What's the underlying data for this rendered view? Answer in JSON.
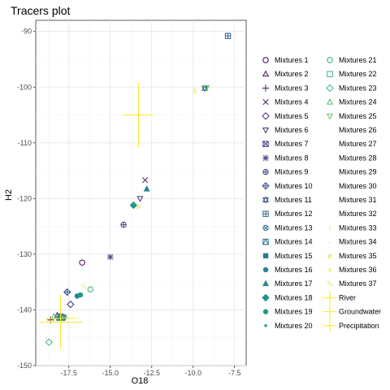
{
  "chart_data": {
    "type": "scatter",
    "title": "Tracers plot",
    "xlabel": "O18",
    "ylabel": "H2",
    "xlim": [
      -19.5,
      -6.8
    ],
    "ylim": [
      -150,
      -88
    ],
    "x_ticks": [
      -17.5,
      -15.0,
      -12.5,
      -10.0,
      -7.5
    ],
    "y_ticks": [
      -90,
      -100,
      -110,
      -120,
      -130,
      -140,
      -150
    ],
    "x_tick_labels": [
      "-17.5",
      "-15.0",
      "-12.5",
      "-10.0",
      "-7.5"
    ],
    "y_tick_labels": [
      "-90",
      "-100",
      "-110",
      "-120",
      "-130",
      "-140",
      "-150"
    ],
    "grid": true,
    "legend_position": "right",
    "series": [
      {
        "name": "Mixtures 1",
        "shape": "circle",
        "color": "#440154",
        "points": [
          [
            -16.7,
            -131.5
          ]
        ]
      },
      {
        "name": "Mixtures 2",
        "shape": "triangle",
        "color": "#46085c",
        "points": [
          [
            -18.2,
            -141.0
          ]
        ]
      },
      {
        "name": "Mixtures 3",
        "shape": "plus",
        "color": "#471063",
        "points": [
          [
            -18.6,
            -141.8
          ]
        ]
      },
      {
        "name": "Mixtures 4",
        "shape": "cross",
        "color": "#481a6c",
        "points": [
          [
            -12.9,
            -116.7
          ]
        ]
      },
      {
        "name": "Mixtures 5",
        "shape": "diamond",
        "color": "#482374",
        "points": [
          [
            -17.4,
            -139.0
          ]
        ]
      },
      {
        "name": "Mixtures 6",
        "shape": "triangle-down",
        "color": "#472d7b",
        "points": [
          [
            -13.2,
            -120.0
          ]
        ]
      },
      {
        "name": "Mixtures 7",
        "shape": "square-x",
        "color": "#453581",
        "points": [
          [
            -18.0,
            -141.2
          ]
        ]
      },
      {
        "name": "Mixtures 8",
        "shape": "asterisk",
        "color": "#433e85",
        "points": [
          [
            -15.0,
            -130.5
          ]
        ]
      },
      {
        "name": "Mixtures 9",
        "shape": "circle-plus",
        "color": "#3f4788",
        "points": [
          [
            -14.2,
            -124.7
          ]
        ]
      },
      {
        "name": "Mixtures 10",
        "shape": "diamond-plus",
        "color": "#3b528b",
        "points": [
          [
            -17.6,
            -136.8
          ]
        ]
      },
      {
        "name": "Mixtures 11",
        "shape": "star-of-david",
        "color": "#37598c",
        "points": [
          [
            -9.3,
            -100.2
          ]
        ]
      },
      {
        "name": "Mixtures 12",
        "shape": "square-plus",
        "color": "#33638d",
        "points": [
          [
            -7.9,
            -90.8
          ]
        ]
      },
      {
        "name": "Mixtures 13",
        "shape": "circle-x",
        "color": "#2f6b8e",
        "points": [
          [
            -17.8,
            -141.3
          ]
        ]
      },
      {
        "name": "Mixtures 14",
        "shape": "square-triangle",
        "color": "#2c728e",
        "points": [
          [
            -17.9,
            -141.4
          ]
        ]
      },
      {
        "name": "Mixtures 15",
        "shape": "filled-square",
        "color": "#297b8e",
        "points": [
          [
            -18.1,
            -141.5
          ]
        ]
      },
      {
        "name": "Mixtures 16",
        "shape": "filled-circle",
        "color": "#26828e",
        "points": [
          [
            -17.0,
            -137.5
          ]
        ]
      },
      {
        "name": "Mixtures 17",
        "shape": "filled-triangle",
        "color": "#238a8d",
        "points": [
          [
            -12.8,
            -118.3
          ]
        ]
      },
      {
        "name": "Mixtures 18",
        "shape": "filled-diamond",
        "color": "#20928c",
        "points": [
          [
            -13.6,
            -121.2
          ]
        ]
      },
      {
        "name": "Mixtures 19",
        "shape": "filled-circle",
        "color": "#1f9a8a",
        "points": [
          [
            -16.8,
            -137.3
          ]
        ]
      },
      {
        "name": "Mixtures 20",
        "shape": "small-dot",
        "color": "#21a685",
        "points": [
          [
            -13.6,
            -121.0
          ]
        ]
      },
      {
        "name": "Mixtures 21",
        "shape": "circle",
        "color": "#28ae80",
        "points": [
          [
            -16.2,
            -136.3
          ]
        ]
      },
      {
        "name": "Mixtures 22",
        "shape": "square",
        "color": "#2fb47c",
        "points": [
          [
            -18.0,
            -141.4
          ]
        ]
      },
      {
        "name": "Mixtures 23",
        "shape": "diamond",
        "color": "#3bbb75",
        "points": [
          [
            -18.7,
            -145.8
          ]
        ]
      },
      {
        "name": "Mixtures 24",
        "shape": "triangle",
        "color": "#4ac16d",
        "points": [
          [
            -18.4,
            -141.2
          ]
        ]
      },
      {
        "name": "Mixtures 25",
        "shape": "triangle-down",
        "color": "#5ac864",
        "points": [
          [
            -9.2,
            -100.1
          ]
        ]
      },
      {
        "name": "Mixtures 26",
        "shape": "blank",
        "color": "#6ccd5a",
        "points": []
      },
      {
        "name": "Mixtures 27",
        "shape": "blank",
        "color": "#7fd34e",
        "points": []
      },
      {
        "name": "Mixtures 28",
        "shape": "blank",
        "color": "#93d741",
        "points": []
      },
      {
        "name": "Mixtures 29",
        "shape": "blank",
        "color": "#a8db34",
        "points": []
      },
      {
        "name": "Mixtures 30",
        "shape": "blank",
        "color": "#bddf26",
        "points": []
      },
      {
        "name": "Mixtures 31",
        "shape": "blank",
        "color": "#d2e21b",
        "points": []
      },
      {
        "name": "Mixtures 32",
        "shape": "blank",
        "color": "#e5e419",
        "points": []
      },
      {
        "name": "Mixtures 33",
        "shape": "glyph",
        "glyph": "!",
        "color": "#e1dd37",
        "points": [
          [
            -18.6,
            -142.2
          ]
        ]
      },
      {
        "name": "Mixtures 34",
        "shape": "glyph",
        "glyph": "-",
        "color": "#e1dd37",
        "points": [
          [
            -18.4,
            -142.0
          ]
        ]
      },
      {
        "name": "Mixtures 35",
        "shape": "glyph",
        "glyph": "#",
        "color": "#e3dc4a",
        "points": [
          [
            -13.3,
            -121.5
          ]
        ]
      },
      {
        "name": "Mixtures 36",
        "shape": "glyph",
        "glyph": "$",
        "color": "#f0e442",
        "points": [
          [
            -9.9,
            -100.6
          ]
        ]
      },
      {
        "name": "Mixtures 37",
        "shape": "glyph",
        "glyph": "%",
        "color": "#e8e36c",
        "points": [
          [
            -16.6,
            -135.8
          ]
        ]
      },
      {
        "name": "River",
        "shape": "errorcross",
        "color": "#fde725",
        "points": [
          [
            -18.0,
            -141.5,
            0.9,
            4.2
          ]
        ]
      },
      {
        "name": "Groundwater",
        "shape": "errorcross",
        "color": "#fde725",
        "points": [
          [
            -13.3,
            -105.0,
            0.9,
            5.8
          ]
        ]
      },
      {
        "name": "Precipitation",
        "shape": "errorcross",
        "color": "#fde725",
        "points": [
          [
            -18.0,
            -142.2,
            1.3,
            4.8
          ]
        ]
      }
    ]
  }
}
